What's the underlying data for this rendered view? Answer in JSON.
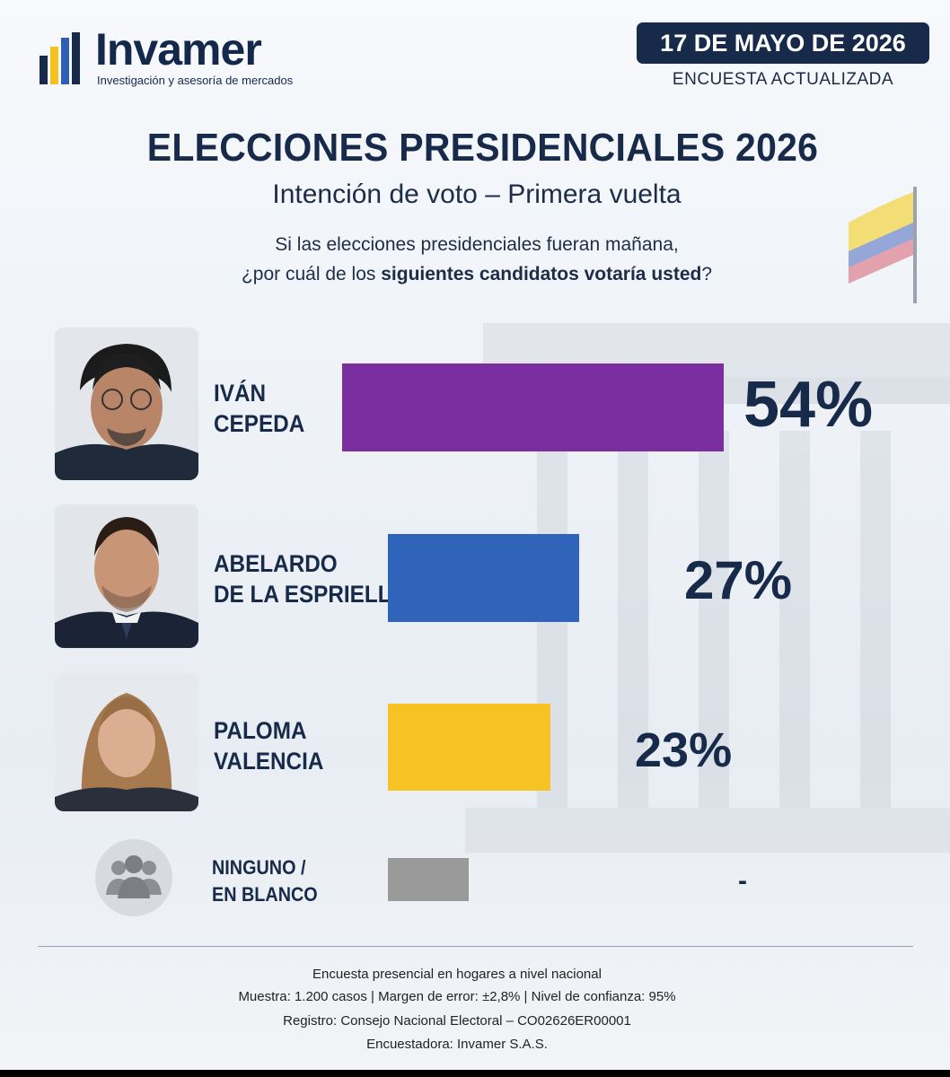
{
  "brand": {
    "name": "Invamer",
    "tagline": "Investigación y asesoría de mercados",
    "colors": {
      "navy": "#172a4a",
      "blue": "#2f5fb3",
      "yellow": "#f4c220"
    }
  },
  "header": {
    "date": "17 DE MAYO DE 2026",
    "date_note": "ENCUESTA ACTUALIZADA"
  },
  "chart_data": {
    "type": "bar",
    "orientation": "horizontal",
    "title": "ELECCIONES PRESIDENCIALES 2026",
    "subtitle": "Intención de voto – Primera vuelta",
    "question_line1": "Si las elecciones presidenciales fueran mañana,",
    "question_line2_pre": "¿por cuál de los ",
    "question_line2_bold": "siguientes candidatos votaría usted",
    "question_line2_post": "?",
    "categories": [
      {
        "line1": "IVÁN",
        "line2": "CEPEDA"
      },
      {
        "line1": "ABELARDO",
        "line2": "DE LA ESPRIELLA"
      },
      {
        "line1": "PALOMA",
        "line2": "VALENCIA"
      },
      {
        "line1": "NINGUNO /",
        "line2": "EN BLANCO"
      }
    ],
    "values": [
      54,
      27,
      23,
      null
    ],
    "value_labels": [
      "54%",
      "27%",
      "23%",
      "-"
    ],
    "colors": [
      "#7a2e9f",
      "#2f64ba",
      "#f6c224",
      "#9a9a9a"
    ],
    "unit": "%",
    "grid": false,
    "legend": "none"
  },
  "footer": {
    "line1": "Encuesta presencial en hogares a nivel nacional",
    "line2": "Muestra: 1.200 casos | Margen de error: ±2,8% | Nivel de confianza: 95%",
    "line3": "Registro: Consejo Nacional Electoral – CO02626ER00001",
    "line4": "Encuestadora: Invamer S.A.S."
  }
}
